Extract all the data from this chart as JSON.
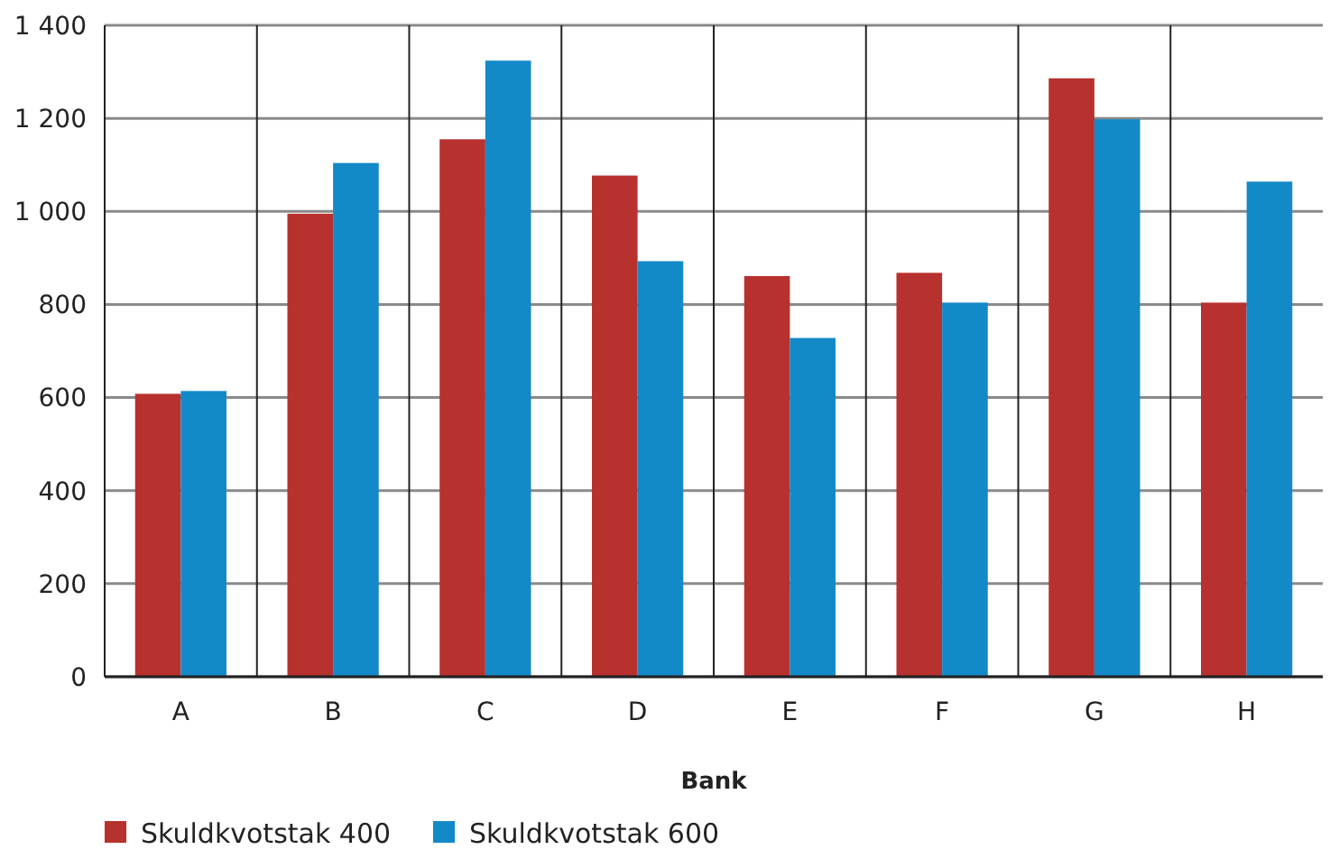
{
  "chart_data": {
    "type": "bar",
    "xlabel": "Bank",
    "categories": [
      "A",
      "B",
      "C",
      "D",
      "E",
      "F",
      "G",
      "H"
    ],
    "series": [
      {
        "name": "Skuldkvotstak 400",
        "color": "#b7312e",
        "values": [
          608,
          995,
          1155,
          1077,
          861,
          868,
          1286,
          804
        ]
      },
      {
        "name": "Skuldkvotstak 600",
        "color": "#1489c8",
        "values": [
          614,
          1104,
          1324,
          893,
          728,
          804,
          1198,
          1064
        ]
      }
    ],
    "ylim": [
      0,
      1400
    ],
    "yticks": [
      {
        "value": 0,
        "label": "0"
      },
      {
        "value": 200,
        "label": "200"
      },
      {
        "value": 400,
        "label": "400"
      },
      {
        "value": 600,
        "label": "600"
      },
      {
        "value": 800,
        "label": "800"
      },
      {
        "value": 1000,
        "label": "1 000"
      },
      {
        "value": 1200,
        "label": "1 200"
      },
      {
        "value": 1400,
        "label": "1 400"
      }
    ],
    "grid": true,
    "legend": "bottom"
  }
}
